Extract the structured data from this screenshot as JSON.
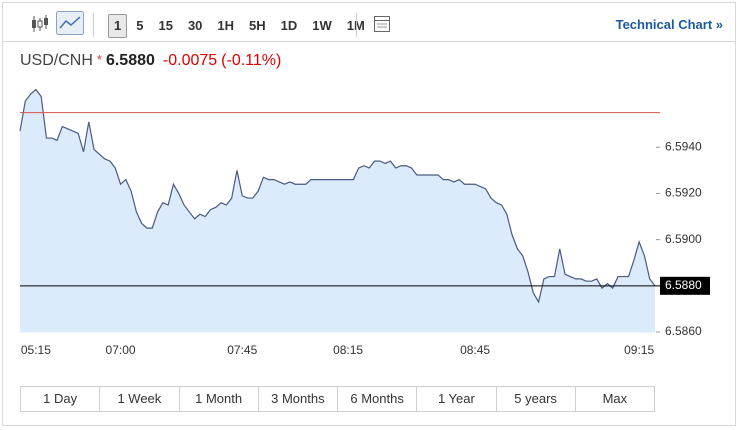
{
  "toolbar": {
    "intervals": [
      "1",
      "5",
      "15",
      "30",
      "1H",
      "5H",
      "1D",
      "1W",
      "1M"
    ],
    "selected_interval": 0,
    "link": "Technical Chart »"
  },
  "quote": {
    "symbol": "USD/CNH",
    "marker": "*",
    "price": "6.5880",
    "change": "-0.0075",
    "change_percent": "(-0.11%)"
  },
  "chart_data": {
    "type": "area",
    "color": "#4a5a80",
    "fill": "#dcebfc",
    "categories": [
      null,
      null,
      null,
      "05:15",
      null,
      null,
      null,
      null,
      null,
      null,
      null,
      null,
      null,
      null,
      null,
      null,
      null,
      null,
      null,
      "07:00",
      null,
      null,
      null,
      null,
      null,
      null,
      null,
      null,
      null,
      null,
      null,
      null,
      null,
      null,
      null,
      null,
      null,
      null,
      null,
      null,
      null,
      null,
      "07:45",
      null,
      null,
      null,
      null,
      null,
      null,
      null,
      null,
      null,
      null,
      null,
      null,
      null,
      null,
      null,
      null,
      null,
      null,
      null,
      "08:15",
      null,
      null,
      null,
      null,
      null,
      null,
      null,
      null,
      null,
      null,
      null,
      null,
      null,
      null,
      null,
      null,
      null,
      null,
      null,
      null,
      null,
      null,
      null,
      "08:45",
      null,
      null,
      null,
      null,
      null,
      null,
      null,
      null,
      null,
      null,
      null,
      null,
      null,
      null,
      null,
      null,
      null,
      null,
      null,
      null,
      null,
      null,
      null,
      null,
      null,
      null,
      null,
      null,
      null,
      null,
      "09:15",
      null,
      null,
      null
    ],
    "values": [
      6.5947,
      6.596,
      6.5963,
      6.5965,
      6.5962,
      6.5944,
      6.5944,
      6.5943,
      6.5949,
      6.5948,
      6.5947,
      6.5946,
      6.5938,
      6.5951,
      6.5939,
      6.5937,
      6.5935,
      6.5934,
      6.5931,
      6.5924,
      6.5926,
      6.5921,
      6.5912,
      6.5907,
      6.5905,
      6.5905,
      6.5912,
      6.5916,
      6.5915,
      6.5924,
      6.592,
      6.5915,
      6.5912,
      6.5909,
      6.5911,
      6.591,
      6.5913,
      6.5914,
      6.5916,
      6.5915,
      6.5918,
      6.593,
      6.5919,
      6.5918,
      6.5918,
      6.5921,
      6.5927,
      6.5926,
      6.5926,
      6.5925,
      6.5924,
      6.5925,
      6.5924,
      6.5924,
      6.5924,
      6.5926,
      6.5926,
      6.5926,
      6.5926,
      6.5926,
      6.5926,
      6.5926,
      6.5926,
      6.5926,
      6.5931,
      6.5932,
      6.5931,
      6.5934,
      6.5934,
      6.5933,
      6.5934,
      6.5931,
      6.5932,
      6.5932,
      6.5931,
      6.5928,
      6.5928,
      6.5928,
      6.5928,
      6.5928,
      6.5926,
      6.5926,
      6.5925,
      6.5926,
      6.5924,
      6.5924,
      6.5924,
      6.5923,
      6.5922,
      6.5918,
      6.5916,
      6.5915,
      6.5911,
      6.5902,
      6.5896,
      6.5893,
      6.5886,
      6.5877,
      6.5873,
      6.5883,
      6.5884,
      6.5884,
      6.5896,
      6.5885,
      6.5884,
      6.5883,
      6.5883,
      6.5882,
      6.5882,
      6.5883,
      6.5879,
      6.5881,
      6.5879,
      6.5884,
      6.5884,
      6.5884,
      6.5891,
      6.5899,
      6.5893,
      6.5883,
      6.588
    ],
    "ylim": [
      6.586,
      6.597
    ],
    "yticks": [
      {
        "value": 6.586,
        "label": "6.5860"
      },
      {
        "value": 6.59,
        "label": "6.5900"
      },
      {
        "value": 6.592,
        "label": "6.5920"
      },
      {
        "value": 6.594,
        "label": "6.5940"
      }
    ],
    "reference_lines": [
      {
        "value": 6.5955,
        "color": "#d9534f"
      },
      {
        "value": 6.588,
        "label": "6.5880",
        "color": "#000000"
      }
    ]
  },
  "range_buttons": [
    "1 Day",
    "1 Week",
    "1 Month",
    "3 Months",
    "6 Months",
    "1 Year",
    "5 years",
    "Max"
  ]
}
